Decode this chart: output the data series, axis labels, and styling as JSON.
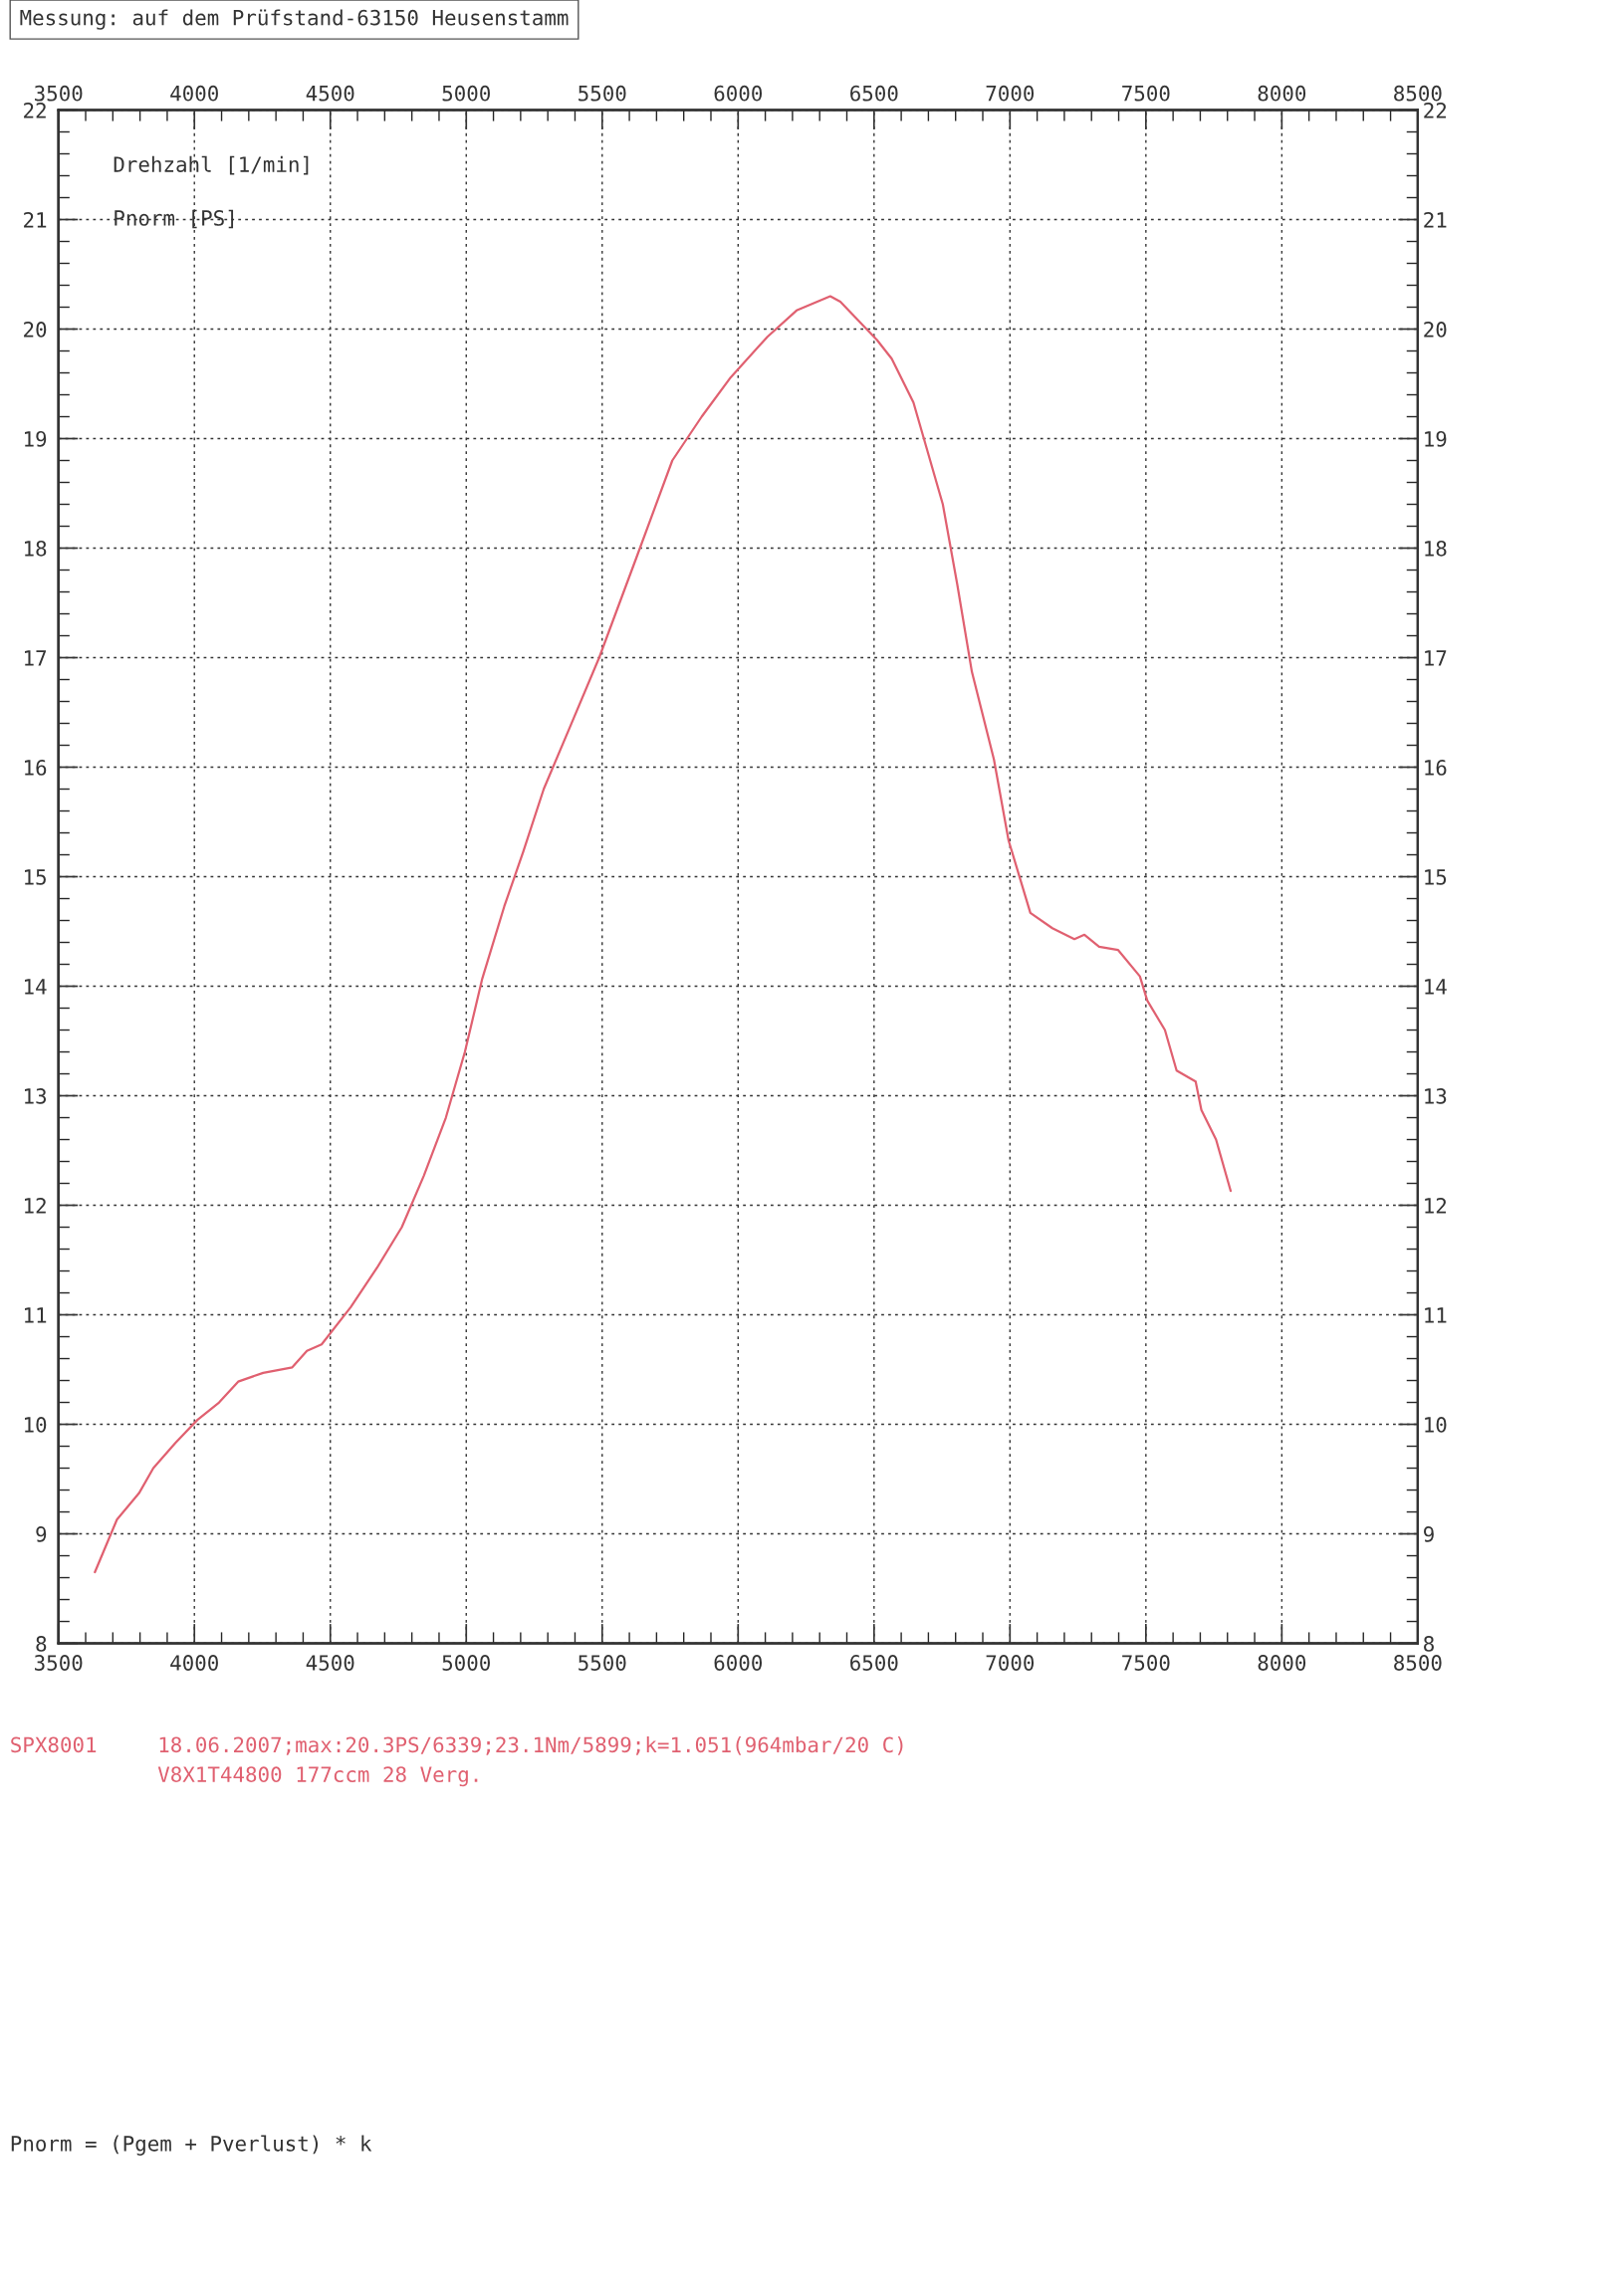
{
  "chart_data": {
    "type": "line",
    "title": "Messung: auf dem Prüfstand-63150 Heusenstamm",
    "xlabel": "Drehzahl [1/min]",
    "ylabel": "Pnorm [PS]",
    "x": [
      3634,
      3715,
      3796,
      3849,
      3930,
      4011,
      4091,
      4161,
      4253,
      4360,
      4414,
      4468,
      4575,
      4672,
      4763,
      4844,
      4925,
      4995,
      5059,
      5140,
      5210,
      5285,
      5382,
      5489,
      5624,
      5758,
      5866,
      5973,
      6108,
      6215,
      6339,
      6376,
      6511,
      6565,
      6645,
      6753,
      6806,
      6860,
      6941,
      6995,
      7075,
      7156,
      7237,
      7274,
      7328,
      7398,
      7478,
      7505,
      7570,
      7613,
      7683,
      7704,
      7758,
      7812
    ],
    "series": [
      {
        "color": "#e06070",
        "values": [
          8.65,
          9.13,
          9.37,
          9.6,
          9.83,
          10.04,
          10.2,
          10.39,
          10.47,
          10.52,
          10.67,
          10.73,
          11.07,
          11.43,
          11.8,
          12.27,
          12.8,
          13.4,
          14.07,
          14.73,
          15.23,
          15.8,
          16.37,
          17.0,
          17.9,
          18.8,
          19.2,
          19.56,
          19.93,
          20.17,
          20.3,
          20.25,
          19.9,
          19.73,
          19.33,
          18.4,
          17.67,
          16.87,
          16.07,
          15.33,
          14.67,
          14.53,
          14.43,
          14.47,
          14.36,
          14.33,
          14.09,
          13.87,
          13.6,
          13.23,
          13.13,
          12.87,
          12.6,
          12.13
        ]
      }
    ],
    "xlim": [
      3500,
      8500
    ],
    "xticks": [
      3500,
      4000,
      4500,
      5000,
      5500,
      6000,
      6500,
      7000,
      7500,
      8000,
      8500
    ],
    "x2lim": [
      3500,
      8500
    ],
    "x2ticks": [
      3500,
      4000,
      4500,
      5000,
      5500,
      6000,
      6500,
      7000,
      7500,
      8000,
      8500
    ],
    "ylim": [
      8,
      22
    ],
    "yticks": [
      8,
      9,
      10,
      11,
      12,
      13,
      14,
      15,
      16,
      17,
      18,
      19,
      20,
      21,
      22
    ],
    "y2lim": [
      8,
      22
    ],
    "y2ticks": [
      8,
      9,
      10,
      11,
      12,
      13,
      14,
      15,
      16,
      17,
      18,
      19,
      20,
      21,
      22
    ],
    "grid": true,
    "legend": false,
    "marker": "none",
    "line_style": "solid",
    "annotations": [
      "SPX8001",
      "18.06.2007;max:20.3PS/6339;23.1Nm/5899;k=1.051(964mbar/20 C)",
      "V8X1T44800 177ccm 28 Verg.",
      "Pnorm = (Pgem + Pverlust) * k"
    ]
  }
}
